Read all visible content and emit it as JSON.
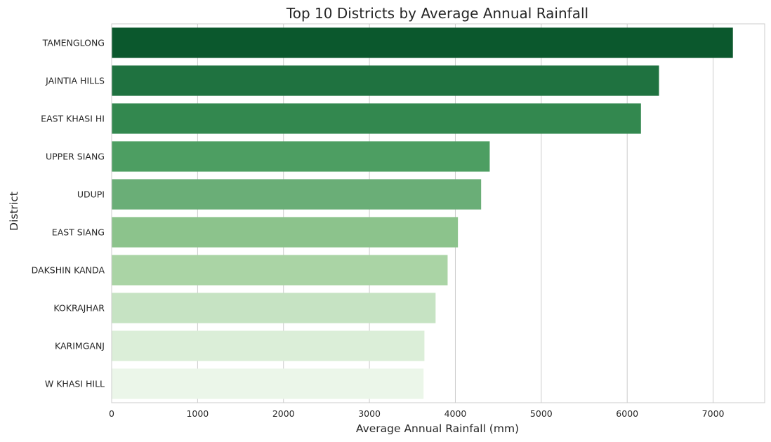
{
  "chart_data": {
    "type": "bar",
    "orientation": "horizontal",
    "title": "Top 10 Districts by Average Annual Rainfall",
    "xlabel": "Average Annual Rainfall (mm)",
    "ylabel": "District",
    "xlim": [
      0,
      7600
    ],
    "xticks": [
      0,
      1000,
      2000,
      3000,
      4000,
      5000,
      6000,
      7000
    ],
    "grid": true,
    "categories": [
      "TAMENGLONG",
      "JAINTIA HILLS",
      "EAST KHASI HI",
      "UPPER SIANG",
      "UDUPI",
      "EAST SIANG",
      "DAKSHIN KANDA",
      "KOKRAJHAR",
      "KARIMGANJ",
      "W KHASI HILL"
    ],
    "values": [
      7230,
      6370,
      6160,
      4400,
      4300,
      4030,
      3910,
      3770,
      3640,
      3630
    ],
    "colors": [
      "#0b582d",
      "#1f7240",
      "#33884f",
      "#4d9e62",
      "#6aae77",
      "#8cc38c",
      "#aad4a5",
      "#c6e3c3",
      "#dbeed8",
      "#ebf6e9"
    ]
  }
}
